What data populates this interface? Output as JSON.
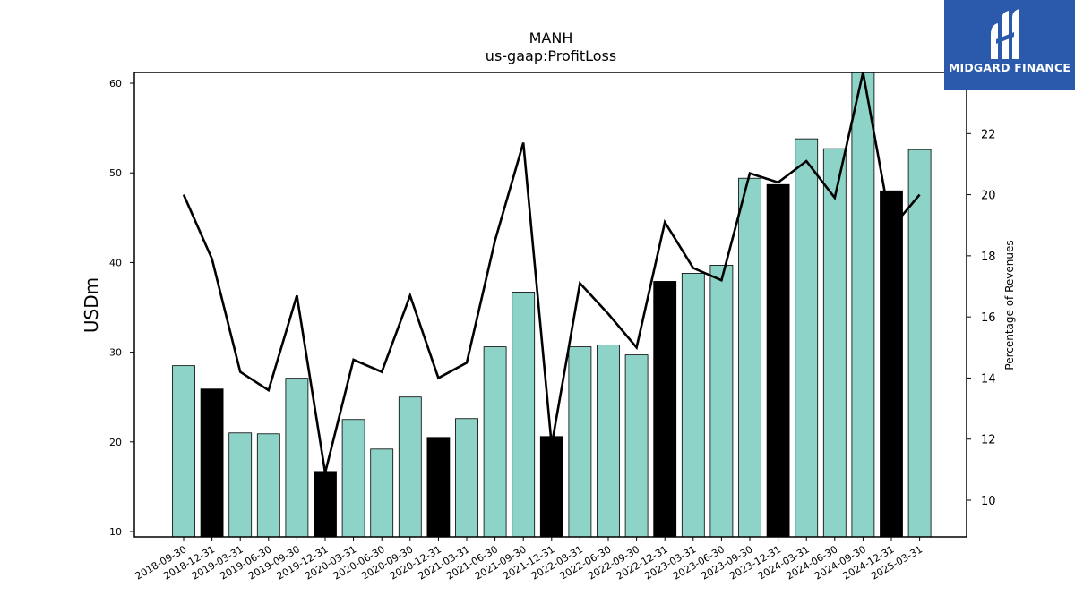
{
  "chart_data": {
    "type": "bar",
    "title": "MANH",
    "subtitle": "us-gaap:ProfitLoss",
    "ylabel": "USDm",
    "ylabel_right": "Percentage of Revenues",
    "ylim": [
      9.4,
      61.2
    ],
    "ylim_right": [
      8.8,
      24
    ],
    "yticks": [
      10,
      20,
      30,
      40,
      50,
      60
    ],
    "yticks_right": [
      10,
      12,
      14,
      16,
      18,
      20,
      22
    ],
    "categories": [
      "2018-09-30",
      "2018-12-31",
      "2019-03-31",
      "2019-06-30",
      "2019-09-30",
      "2019-12-31",
      "2020-03-31",
      "2020-06-30",
      "2020-09-30",
      "2020-12-31",
      "2021-03-31",
      "2021-06-30",
      "2021-09-30",
      "2021-12-31",
      "2022-03-31",
      "2022-06-30",
      "2022-09-30",
      "2022-12-31",
      "2023-03-31",
      "2023-06-30",
      "2023-09-30",
      "2023-12-31",
      "2024-03-31",
      "2024-06-30",
      "2024-09-30",
      "2024-12-31",
      "2025-03-31"
    ],
    "series": [
      {
        "type": "bar",
        "values": [
          28.5,
          25.9,
          21.0,
          20.9,
          27.1,
          16.7,
          22.5,
          19.2,
          25.0,
          20.5,
          22.6,
          30.6,
          36.7,
          20.6,
          30.6,
          30.8,
          29.7,
          37.9,
          38.8,
          39.7,
          49.4,
          48.7,
          53.8,
          52.7,
          61.5,
          48.0,
          52.6
        ],
        "colors": [
          "#8dd3c7",
          "#000000",
          "#8dd3c7",
          "#8dd3c7",
          "#8dd3c7",
          "#000000",
          "#8dd3c7",
          "#8dd3c7",
          "#8dd3c7",
          "#000000",
          "#8dd3c7",
          "#8dd3c7",
          "#8dd3c7",
          "#000000",
          "#8dd3c7",
          "#8dd3c7",
          "#8dd3c7",
          "#000000",
          "#8dd3c7",
          "#8dd3c7",
          "#8dd3c7",
          "#000000",
          "#8dd3c7",
          "#8dd3c7",
          "#8dd3c7",
          "#000000",
          "#8dd3c7"
        ]
      },
      {
        "type": "line",
        "axis": "right",
        "color": "#000000",
        "values": [
          20.0,
          17.9,
          14.2,
          13.6,
          16.7,
          10.9,
          14.6,
          14.2,
          16.7,
          14.0,
          14.5,
          18.5,
          21.7,
          11.8,
          17.1,
          16.1,
          15.0,
          19.1,
          17.6,
          17.2,
          20.7,
          20.4,
          21.1,
          19.9,
          24.0,
          18.9,
          20.0
        ]
      }
    ],
    "grid": false
  },
  "logo": {
    "text": "MIDGARD FINANCE",
    "background": "#2b5aad"
  }
}
